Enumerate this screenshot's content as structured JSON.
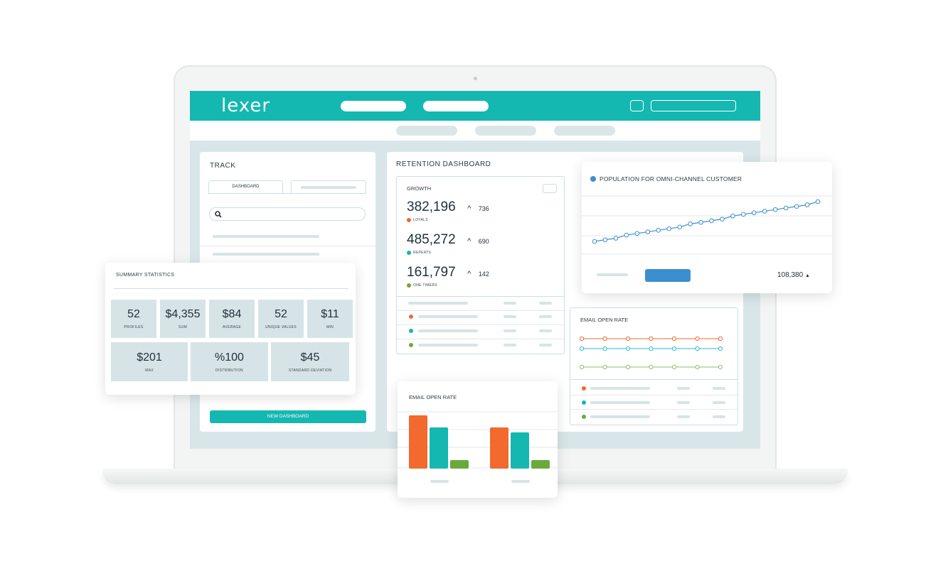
{
  "brand": {
    "logo": "lexer",
    "teal": "#14b8b1"
  },
  "track": {
    "title": "TRACK",
    "tab_active": "DASHBOARD",
    "search_icon": "search-icon",
    "new_button": "NEW DASHBOARD"
  },
  "summary": {
    "title": "SUMMARY STATISTICS",
    "row1": [
      {
        "value": "52",
        "caption": "PROFILES"
      },
      {
        "value": "$4,355",
        "caption": "SUM"
      },
      {
        "value": "$84",
        "caption": "AVERAGE"
      },
      {
        "value": "52",
        "caption": "UNIQUE VALUES"
      },
      {
        "value": "$11",
        "caption": "MIN"
      }
    ],
    "row2": [
      {
        "value": "$201",
        "caption": "MAX"
      },
      {
        "value": "%100",
        "caption": "DISTRIBUTION"
      },
      {
        "value": "$45",
        "caption": "STANDARD DEVIATION"
      }
    ]
  },
  "retention": {
    "title": "RETENTION DASHBOARD",
    "growth": {
      "title": "GROWTH",
      "items": [
        {
          "value": "382,196",
          "delta": "736",
          "label": "LOYALS",
          "color": "#f26a2e"
        },
        {
          "value": "485,272",
          "delta": "690",
          "label": "REPEATS",
          "color": "#14b8b1"
        },
        {
          "value": "161,797",
          "delta": "142",
          "label": "ONE TIMERS",
          "color": "#6aaa3a"
        }
      ]
    }
  },
  "population": {
    "title": "POPULATION FOR OMNI-CHANNEL CUSTOMER",
    "total": "108,380",
    "accent": "#3c8fcf",
    "chart_data": {
      "type": "line",
      "series": [
        {
          "values": [
            1,
            2,
            3,
            5,
            6,
            7,
            8,
            9,
            10,
            12,
            13,
            14,
            15,
            17,
            18,
            19,
            20,
            21,
            22,
            23,
            24,
            26
          ]
        }
      ]
    }
  },
  "email_line": {
    "title": "EMAIL OPEN RATE",
    "colors": [
      "#f26a2e",
      "#2fb7cf",
      "#8dc26a"
    ]
  },
  "email_bar": {
    "title": "EMAIL OPEN RATE",
    "chart_data": {
      "type": "bar",
      "series": [
        {
          "color": "#f26a2e",
          "values": [
            75,
            58
          ]
        },
        {
          "color": "#14b8b1",
          "values": [
            58,
            51
          ]
        },
        {
          "color": "#6aaa3a",
          "values": [
            12,
            12
          ]
        }
      ]
    }
  }
}
